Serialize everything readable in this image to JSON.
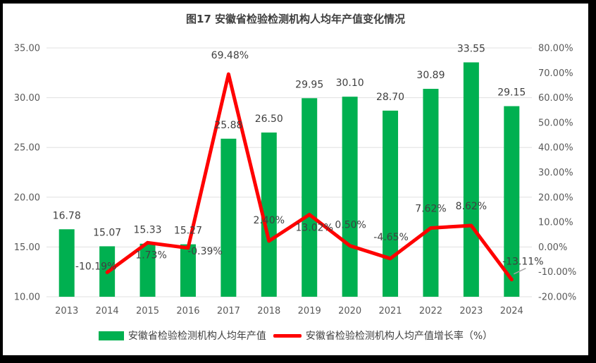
{
  "chart_data": {
    "type": "bar",
    "combo": "bar+line",
    "title": "图17 安徽省检验检测机构人均年产值变化情况",
    "categories": [
      "2013",
      "2014",
      "2015",
      "2016",
      "2017",
      "2018",
      "2019",
      "2020",
      "2021",
      "2022",
      "2023",
      "2024"
    ],
    "series": [
      {
        "name": "安徽省检验检测机构人均年产值",
        "type": "bar",
        "axis": "left",
        "color": "#00B050",
        "values": [
          16.78,
          15.07,
          15.33,
          15.27,
          25.88,
          26.5,
          29.95,
          30.1,
          28.7,
          30.89,
          33.55,
          29.15
        ],
        "labels": [
          "16.78",
          "15.07",
          "15.33",
          "15.27",
          "25.88",
          "26.50",
          "29.95",
          "30.10",
          "28.70",
          "30.89",
          "33.55",
          "29.15"
        ]
      },
      {
        "name": "安徽省检验检测机构人均产值增长率（%）",
        "type": "line",
        "axis": "right",
        "color": "#FF0000",
        "values": [
          null,
          -10.19,
          1.73,
          -0.39,
          69.48,
          2.4,
          13.02,
          0.5,
          -4.65,
          7.62,
          8.62,
          -13.11
        ],
        "labels": [
          null,
          "-10.19%",
          "1.73%",
          "-0.39%",
          "69.48%",
          "2.40%",
          "13.02%",
          "0.50%",
          "-4.65%",
          "7.62%",
          "8.62%",
          "-13.11%"
        ]
      }
    ],
    "left_axis": {
      "min": 10,
      "max": 35,
      "step": 5,
      "ticks": [
        "10.00",
        "15.00",
        "20.00",
        "25.00",
        "30.00",
        "35.00"
      ]
    },
    "right_axis": {
      "min": -20,
      "max": 80,
      "step": 10,
      "ticks": [
        "-20.00%",
        "-10.00%",
        "0.00%",
        "10.00%",
        "20.00%",
        "30.00%",
        "40.00%",
        "50.00%",
        "60.00%",
        "70.00%",
        "80.00%"
      ]
    },
    "grid": true,
    "legend_position": "bottom",
    "colors": {
      "bar": "#00B050",
      "line": "#FF0000",
      "grid": "#E0E0E0",
      "axis_text": "#595959",
      "label_text": "#404040",
      "leader": "#A6A6A6",
      "frame": "#000000"
    },
    "label_offsets": {
      "1": [
        -16,
        -9
      ],
      "2": [
        5,
        17
      ],
      "3": [
        24,
        4
      ],
      "4": [
        2,
        -27
      ],
      "5": [
        0,
        -30
      ],
      "6": [
        7,
        18
      ],
      "7": [
        1,
        -30
      ],
      "8": [
        1,
        -31
      ],
      "9": [
        0,
        -28
      ],
      "10": [
        0,
        -28
      ],
      "11": [
        16,
        -26
      ]
    },
    "leader": {
      "index": 11
    }
  }
}
